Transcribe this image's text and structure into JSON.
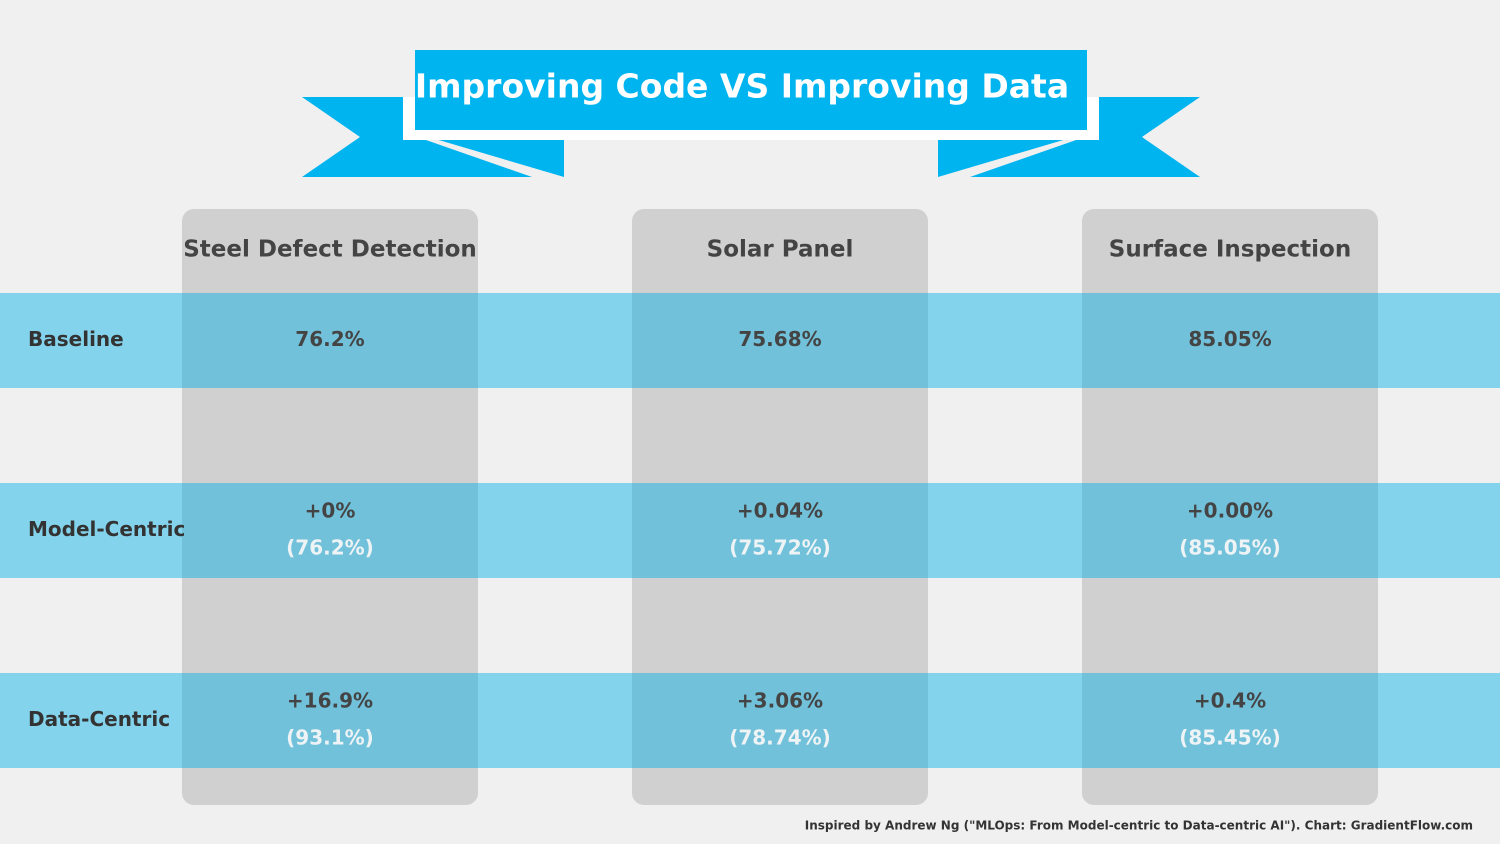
{
  "title": "Improving Code VS Improving Data",
  "table": {
    "columns": [
      "Steel Defect Detection",
      "Solar Panel",
      "Surface Inspection"
    ],
    "rows": [
      {
        "label": "Baseline",
        "cells": [
          {
            "main": "76.2%"
          },
          {
            "main": "75.68%"
          },
          {
            "main": "85.05%"
          }
        ]
      },
      {
        "label": "Model-Centric",
        "cells": [
          {
            "main": "+0%",
            "sub": "(76.2%)"
          },
          {
            "main": "+0.04%",
            "sub": "(75.72%)"
          },
          {
            "main": "+0.00%",
            "sub": "(85.05%)"
          }
        ]
      },
      {
        "label": "Data-Centric",
        "cells": [
          {
            "main": "+16.9%",
            "sub": "(93.1%)"
          },
          {
            "main": "+3.06%",
            "sub": "(78.74%)"
          },
          {
            "main": "+0.4%",
            "sub": "(85.45%)"
          }
        ]
      }
    ]
  },
  "footer": "Inspired by Andrew Ng (\"MLOps: From Model-centric to Data-centric AI\"). Chart: GradientFlow.com"
}
